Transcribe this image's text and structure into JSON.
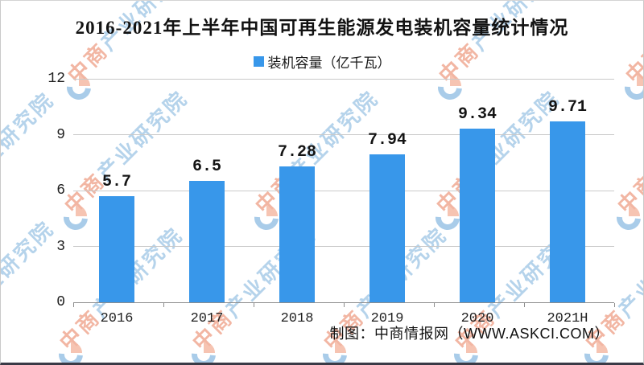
{
  "title": "2016-2021年上半年中国可再生能源发电装机容量统计情况",
  "legend": {
    "label": "装机容量（亿千瓦）"
  },
  "footer": {
    "credit": "制图：中商情报网（WWW.ASKCI.COM）"
  },
  "watermark": {
    "text_pink": "中商",
    "text_blue": "产业研究院",
    "pink_color": "#f2b6a3",
    "blue_color": "#b5d3eb"
  },
  "colors": {
    "bar": "#3897EA",
    "gridline": "#c9c9c9",
    "axis": "#8c8c8c",
    "title_text": "#121212",
    "bottom_rule": "#3a3a46"
  },
  "chart_data": {
    "type": "bar",
    "categories": [
      "2016",
      "2017",
      "2018",
      "2019",
      "2020",
      "2021H"
    ],
    "values": [
      5.7,
      6.5,
      7.28,
      7.94,
      9.34,
      9.71
    ],
    "value_labels": [
      "5.7",
      "6.5",
      "7.28",
      "7.94",
      "9.34",
      "9.71"
    ],
    "title": "2016-2021年上半年中国可再生能源发电装机容量统计情况",
    "xlabel": "",
    "ylabel": "",
    "ylim": [
      0,
      12
    ],
    "yticks": [
      0,
      3,
      6,
      9,
      12
    ],
    "grid": true,
    "legend_entries": [
      "装机容量（亿千瓦）"
    ],
    "legend_position": "top-center",
    "bar_color": "#3897EA"
  }
}
